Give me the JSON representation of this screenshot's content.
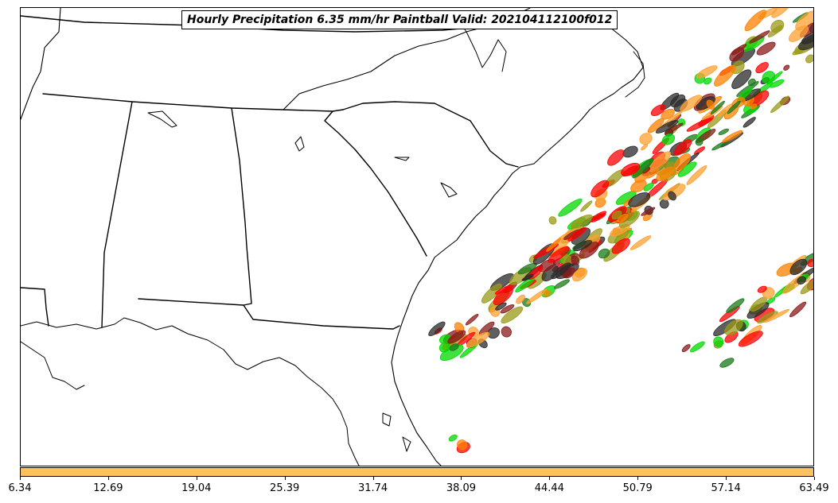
{
  "title": "Hourly Precipitation 6.35 mm/hr Paintball Valid: 202104112100f012",
  "colorbar": {
    "color": "#ffc060",
    "tick_labels": [
      "6.34",
      "12.69",
      "19.04",
      "25.39",
      "31.74",
      "38.09",
      "44.44",
      "50.79",
      "57.14",
      "63.49"
    ]
  },
  "map": {
    "region": "southeastern-united-states",
    "background": "#ffffff",
    "line_color": "#000000",
    "member_colors": [
      "#ff0000",
      "#ff8000",
      "#00d800",
      "#1a7a1a",
      "#8b1a1a",
      "#9a9a1a",
      "#2a2a2a",
      "#ffa030"
    ]
  }
}
